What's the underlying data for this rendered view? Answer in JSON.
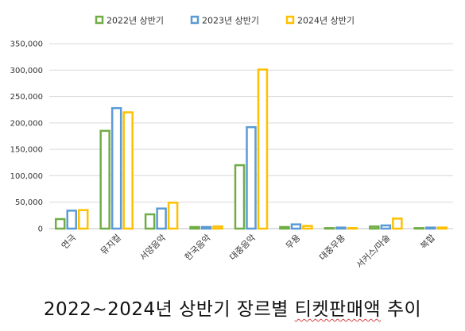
{
  "caption": {
    "before": "2022~2024년 상반기 장르별 ",
    "underlined": "티켓판매액",
    "after": " 추이"
  },
  "chart_data": {
    "type": "bar",
    "categories": [
      "연극",
      "뮤지컬",
      "서양음악",
      "한국음악",
      "대중음악",
      "무용",
      "대중무용",
      "서커스/마술",
      "복합"
    ],
    "series": [
      {
        "name": "2022년 상반기",
        "color": "#70ad47",
        "values": [
          18000,
          185000,
          27000,
          3000,
          120000,
          3000,
          1000,
          4000,
          1000
        ]
      },
      {
        "name": "2023년 상반기",
        "color": "#5b9bd5",
        "values": [
          34000,
          228000,
          38000,
          3000,
          192000,
          8000,
          2000,
          6000,
          2000
        ]
      },
      {
        "name": "2024년 상반기",
        "color": "#ffc000",
        "values": [
          35000,
          220000,
          49000,
          4000,
          301000,
          5000,
          1000,
          19000,
          2000
        ]
      }
    ],
    "ylim": [
      0,
      350000
    ],
    "yticks": [
      "0",
      "50,000",
      "100,000",
      "150,000",
      "200,000",
      "250,000",
      "300,000",
      "350,000"
    ],
    "grid": true,
    "legend": "top"
  }
}
